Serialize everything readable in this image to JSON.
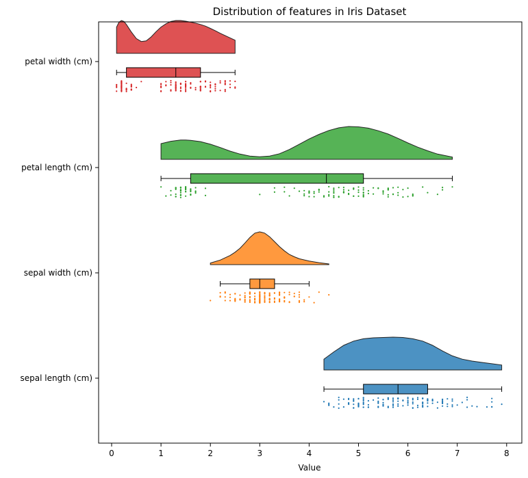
{
  "chart_data": {
    "type": "raincloud",
    "title": "Distribution of features in Iris Dataset",
    "xlabel": "Value",
    "ylabel": "",
    "xlim": [
      -0.25,
      8.3
    ],
    "xticks": [
      0,
      1,
      2,
      3,
      4,
      5,
      6,
      7,
      8
    ],
    "categories": [
      "petal width (cm)",
      "petal length (cm)",
      "sepal width (cm)",
      "sepal length (cm)"
    ],
    "colors": [
      "#d62728",
      "#2ca02c",
      "#ff7f0e",
      "#1f77b4"
    ],
    "series": [
      {
        "name": "petal width (cm)",
        "box": {
          "min": 0.1,
          "q1": 0.3,
          "median": 1.3,
          "q3": 1.8,
          "max": 2.5
        },
        "density": {
          "x": [
            0.1,
            0.15,
            0.2,
            0.25,
            0.3,
            0.4,
            0.5,
            0.6,
            0.7,
            0.8,
            0.9,
            1.0,
            1.1,
            1.2,
            1.3,
            1.4,
            1.5,
            1.6,
            1.7,
            1.8,
            1.9,
            2.0,
            2.1,
            2.2,
            2.3,
            2.4,
            2.5
          ],
          "y": [
            0.8,
            0.95,
            1.0,
            0.97,
            0.88,
            0.65,
            0.45,
            0.36,
            0.38,
            0.5,
            0.66,
            0.8,
            0.9,
            0.97,
            1.0,
            1.0,
            0.98,
            0.95,
            0.92,
            0.88,
            0.83,
            0.76,
            0.69,
            0.61,
            0.54,
            0.47,
            0.4
          ]
        },
        "points": [
          0.2,
          0.2,
          0.2,
          0.2,
          0.2,
          0.4,
          0.3,
          0.2,
          0.2,
          0.1,
          0.2,
          0.2,
          0.1,
          0.1,
          0.2,
          0.4,
          0.4,
          0.3,
          0.3,
          0.3,
          0.2,
          0.4,
          0.2,
          0.5,
          0.2,
          0.2,
          0.4,
          0.2,
          0.2,
          0.2,
          0.2,
          0.4,
          0.1,
          0.2,
          0.2,
          0.2,
          0.2,
          0.1,
          0.2,
          0.2,
          0.3,
          0.3,
          0.2,
          0.6,
          0.4,
          0.3,
          0.2,
          0.2,
          0.2,
          0.2,
          1.4,
          1.5,
          1.5,
          1.3,
          1.5,
          1.3,
          1.6,
          1.0,
          1.3,
          1.4,
          1.0,
          1.5,
          1.0,
          1.4,
          1.3,
          1.4,
          1.5,
          1.0,
          1.5,
          1.1,
          1.8,
          1.3,
          1.5,
          1.2,
          1.3,
          1.4,
          1.4,
          1.7,
          1.5,
          1.0,
          1.1,
          1.0,
          1.2,
          1.6,
          1.5,
          1.6,
          1.5,
          1.3,
          1.3,
          1.3,
          1.2,
          1.4,
          1.2,
          1.0,
          1.3,
          1.2,
          1.3,
          1.3,
          1.1,
          1.3,
          2.5,
          1.9,
          2.1,
          1.8,
          2.2,
          2.1,
          1.7,
          1.8,
          1.8,
          2.5,
          2.0,
          1.9,
          2.1,
          2.0,
          2.4,
          2.3,
          1.8,
          2.2,
          2.3,
          1.5,
          2.3,
          2.0,
          2.0,
          1.8,
          2.1,
          1.8,
          1.8,
          1.8,
          2.1,
          1.6,
          1.9,
          2.0,
          2.2,
          1.5,
          1.4,
          2.3,
          2.4,
          1.8,
          1.8,
          2.1,
          2.4,
          2.3,
          1.9,
          2.3,
          2.5,
          2.3,
          1.9,
          2.0,
          2.3,
          1.8
        ]
      },
      {
        "name": "petal length (cm)",
        "box": {
          "min": 1.0,
          "q1": 1.6,
          "median": 4.35,
          "q3": 5.1,
          "max": 6.9
        },
        "density": {
          "x": [
            1.0,
            1.2,
            1.4,
            1.5,
            1.6,
            1.8,
            2.0,
            2.2,
            2.4,
            2.6,
            2.8,
            3.0,
            3.2,
            3.4,
            3.6,
            3.8,
            4.0,
            4.2,
            4.4,
            4.6,
            4.8,
            5.0,
            5.2,
            5.4,
            5.6,
            5.8,
            6.0,
            6.2,
            6.4,
            6.6,
            6.9
          ],
          "y": [
            0.48,
            0.55,
            0.59,
            0.59,
            0.58,
            0.54,
            0.46,
            0.36,
            0.25,
            0.16,
            0.1,
            0.08,
            0.1,
            0.17,
            0.3,
            0.46,
            0.62,
            0.76,
            0.88,
            0.96,
            1.0,
            0.99,
            0.95,
            0.87,
            0.77,
            0.64,
            0.5,
            0.37,
            0.26,
            0.16,
            0.07
          ]
        },
        "points": [
          1.4,
          1.4,
          1.3,
          1.5,
          1.4,
          1.7,
          1.4,
          1.5,
          1.4,
          1.5,
          1.5,
          1.6,
          1.4,
          1.1,
          1.2,
          1.5,
          1.3,
          1.4,
          1.7,
          1.5,
          1.7,
          1.5,
          1.0,
          1.7,
          1.9,
          1.6,
          1.6,
          1.5,
          1.4,
          1.6,
          1.6,
          1.5,
          1.5,
          1.4,
          1.5,
          1.2,
          1.3,
          1.4,
          1.3,
          1.5,
          1.3,
          1.3,
          1.3,
          1.6,
          1.9,
          1.4,
          1.6,
          1.4,
          1.5,
          1.4,
          4.7,
          4.5,
          4.9,
          4.0,
          4.6,
          4.5,
          4.7,
          3.3,
          4.6,
          3.9,
          3.5,
          4.2,
          4.0,
          4.7,
          3.6,
          4.4,
          4.5,
          4.1,
          4.5,
          3.9,
          4.8,
          4.0,
          4.9,
          4.7,
          4.3,
          4.4,
          4.8,
          5.0,
          4.5,
          3.5,
          3.8,
          3.7,
          3.9,
          5.1,
          4.5,
          4.5,
          4.7,
          4.4,
          4.1,
          4.0,
          4.4,
          4.6,
          4.0,
          3.3,
          4.2,
          4.2,
          4.2,
          4.3,
          3.0,
          4.1,
          6.0,
          5.1,
          5.9,
          5.6,
          5.8,
          6.6,
          4.5,
          6.3,
          5.8,
          6.1,
          5.1,
          5.3,
          5.5,
          5.0,
          5.1,
          5.3,
          5.5,
          6.7,
          6.9,
          5.0,
          5.7,
          4.9,
          6.7,
          4.9,
          5.7,
          6.0,
          4.8,
          4.9,
          5.6,
          5.8,
          6.1,
          6.4,
          5.6,
          5.1,
          5.6,
          6.1,
          5.6,
          5.5,
          4.8,
          5.4,
          5.6,
          5.1,
          5.1,
          5.9,
          5.7,
          5.2,
          5.0,
          5.2,
          5.4,
          5.1
        ]
      },
      {
        "name": "sepal width (cm)",
        "box": {
          "min": 2.2,
          "q1": 2.8,
          "median": 3.0,
          "q3": 3.3,
          "max": 4.0
        },
        "density": {
          "x": [
            2.0,
            2.2,
            2.4,
            2.5,
            2.6,
            2.7,
            2.8,
            2.9,
            3.0,
            3.1,
            3.2,
            3.3,
            3.4,
            3.5,
            3.6,
            3.7,
            3.8,
            4.0,
            4.2,
            4.4
          ],
          "y": [
            0.05,
            0.14,
            0.28,
            0.38,
            0.5,
            0.66,
            0.83,
            0.96,
            1.0,
            0.96,
            0.85,
            0.7,
            0.55,
            0.42,
            0.31,
            0.24,
            0.18,
            0.11,
            0.06,
            0.02
          ]
        },
        "points": [
          3.5,
          3.0,
          3.2,
          3.1,
          3.6,
          3.9,
          3.4,
          3.4,
          2.9,
          3.1,
          3.7,
          3.4,
          3.0,
          3.0,
          4.0,
          4.4,
          3.9,
          3.5,
          3.8,
          3.8,
          3.4,
          3.7,
          3.6,
          3.3,
          3.4,
          3.0,
          3.4,
          3.5,
          3.4,
          3.2,
          3.1,
          3.4,
          4.1,
          4.2,
          3.1,
          3.2,
          3.5,
          3.6,
          3.0,
          3.4,
          3.5,
          2.3,
          3.2,
          3.5,
          3.8,
          3.0,
          3.8,
          3.2,
          3.7,
          3.3,
          3.2,
          3.2,
          3.1,
          2.3,
          2.8,
          2.8,
          3.3,
          2.4,
          2.9,
          2.7,
          2.0,
          3.0,
          2.2,
          2.9,
          2.9,
          3.1,
          3.0,
          2.7,
          2.2,
          2.5,
          3.2,
          2.8,
          2.5,
          2.8,
          2.9,
          3.0,
          2.8,
          3.0,
          2.9,
          2.6,
          2.4,
          2.4,
          2.7,
          2.7,
          3.0,
          3.4,
          3.1,
          2.3,
          3.0,
          2.5,
          2.6,
          3.0,
          2.6,
          2.3,
          2.7,
          3.0,
          2.9,
          2.9,
          2.5,
          2.8,
          3.3,
          2.7,
          3.0,
          2.9,
          3.0,
          3.0,
          2.5,
          2.9,
          2.5,
          3.6,
          3.2,
          2.7,
          3.0,
          2.5,
          2.8,
          3.2,
          3.0,
          3.8,
          2.6,
          2.2,
          3.2,
          2.8,
          2.8,
          2.7,
          3.3,
          3.2,
          2.8,
          3.0,
          2.8,
          3.0,
          2.8,
          3.8,
          2.8,
          2.8,
          2.6,
          3.0,
          3.4,
          3.1,
          3.0,
          3.1,
          3.1,
          3.1,
          2.7,
          3.2,
          3.3,
          3.0,
          2.5,
          3.0,
          3.4,
          3.0
        ]
      },
      {
        "name": "sepal length (cm)",
        "box": {
          "min": 4.3,
          "q1": 5.1,
          "median": 5.8,
          "q3": 6.4,
          "max": 7.9
        },
        "density": {
          "x": [
            4.3,
            4.5,
            4.7,
            4.9,
            5.1,
            5.3,
            5.5,
            5.7,
            5.9,
            6.1,
            6.3,
            6.5,
            6.7,
            6.9,
            7.1,
            7.3,
            7.5,
            7.7,
            7.9
          ],
          "y": [
            0.33,
            0.55,
            0.75,
            0.88,
            0.95,
            0.98,
            0.99,
            1.0,
            0.99,
            0.95,
            0.88,
            0.75,
            0.58,
            0.43,
            0.33,
            0.27,
            0.23,
            0.19,
            0.15
          ]
        },
        "points": [
          5.1,
          4.9,
          4.7,
          4.6,
          5.0,
          5.4,
          4.6,
          5.0,
          4.4,
          4.9,
          5.4,
          4.8,
          4.8,
          4.3,
          5.8,
          5.7,
          5.4,
          5.1,
          5.7,
          5.1,
          5.4,
          5.1,
          4.6,
          5.1,
          4.8,
          5.0,
          5.0,
          5.2,
          5.2,
          4.7,
          4.8,
          5.4,
          5.2,
          5.5,
          4.9,
          5.0,
          5.5,
          4.9,
          4.4,
          5.1,
          5.0,
          4.5,
          4.4,
          5.0,
          5.1,
          4.8,
          5.1,
          4.6,
          5.3,
          5.0,
          7.0,
          6.4,
          6.9,
          5.5,
          6.5,
          5.7,
          6.3,
          4.9,
          6.6,
          5.2,
          5.0,
          5.9,
          6.0,
          6.1,
          5.6,
          6.7,
          5.6,
          5.8,
          6.2,
          5.6,
          5.9,
          6.1,
          6.3,
          6.1,
          6.4,
          6.6,
          6.8,
          6.7,
          6.0,
          5.7,
          5.5,
          5.5,
          5.8,
          6.0,
          5.4,
          6.0,
          6.7,
          6.3,
          5.6,
          5.5,
          5.5,
          6.1,
          5.8,
          5.0,
          5.6,
          5.7,
          5.7,
          6.2,
          5.1,
          5.7,
          6.3,
          5.8,
          7.1,
          6.3,
          6.5,
          7.6,
          4.9,
          7.3,
          6.7,
          7.2,
          6.5,
          6.4,
          6.8,
          5.7,
          5.8,
          6.4,
          6.5,
          7.7,
          7.7,
          6.0,
          6.9,
          5.6,
          7.7,
          6.3,
          6.7,
          7.2,
          6.2,
          6.1,
          6.4,
          7.2,
          7.4,
          7.9,
          6.4,
          6.3,
          6.1,
          7.7,
          6.3,
          6.4,
          6.0,
          6.9,
          6.7,
          6.9,
          5.8,
          6.8,
          6.7,
          6.7,
          6.3,
          6.5,
          6.2,
          5.9
        ]
      }
    ]
  }
}
